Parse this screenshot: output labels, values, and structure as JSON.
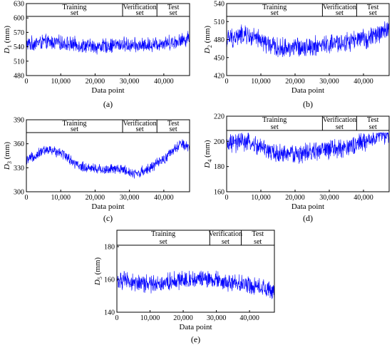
{
  "chart_data": [
    {
      "type": "line",
      "panel_label": "(a)",
      "ylabel_base": "D",
      "ylabel_sub": "1",
      "ylabel_unit": " (mm)",
      "xlabel": "Data point",
      "x_range": [
        0,
        47500
      ],
      "ylim": [
        480,
        630
      ],
      "yticks": [
        "480",
        "510",
        "540",
        "570",
        "600",
        "630"
      ],
      "xticks": [
        "0",
        "10,000",
        "20,000",
        "30,000",
        "40,000"
      ],
      "color": "#0000ff",
      "segments": [
        {
          "line1": "Training",
          "line2": "set",
          "x_start": 0,
          "x_end": 28000
        },
        {
          "line1": "Verification",
          "line2": "set",
          "x_start": 28000,
          "x_end": 38000
        },
        {
          "line1": "Test",
          "line2": "set",
          "x_start": 38000,
          "x_end": 47500
        }
      ],
      "trend": [
        [
          0,
          545
        ],
        [
          5000,
          550
        ],
        [
          10000,
          548
        ],
        [
          20000,
          540
        ],
        [
          28000,
          545
        ],
        [
          33000,
          542
        ],
        [
          40000,
          548
        ],
        [
          45000,
          552
        ],
        [
          47500,
          560
        ]
      ],
      "noise": 14
    },
    {
      "type": "line",
      "panel_label": "(b)",
      "ylabel_base": "D",
      "ylabel_sub": "2",
      "ylabel_unit": " (mm)",
      "xlabel": "Data point",
      "x_range": [
        0,
        47500
      ],
      "ylim": [
        420,
        540
      ],
      "yticks": [
        "420",
        "450",
        "480",
        "510",
        "540"
      ],
      "xticks": [
        "0",
        "10,000",
        "20,000",
        "30,000",
        "40,000"
      ],
      "color": "#0000ff",
      "segments": [
        {
          "line1": "Training",
          "line2": "set",
          "x_start": 0,
          "x_end": 28000
        },
        {
          "line1": "Verification",
          "line2": "set",
          "x_start": 28000,
          "x_end": 38000
        },
        {
          "line1": "Test",
          "line2": "set",
          "x_start": 38000,
          "x_end": 47500
        }
      ],
      "trend": [
        [
          0,
          480
        ],
        [
          5000,
          488
        ],
        [
          10000,
          478
        ],
        [
          15000,
          465
        ],
        [
          22000,
          468
        ],
        [
          28000,
          470
        ],
        [
          33000,
          474
        ],
        [
          40000,
          480
        ],
        [
          45000,
          490
        ],
        [
          47500,
          500
        ]
      ],
      "noise": 15
    },
    {
      "type": "line",
      "panel_label": "(c)",
      "ylabel_base": "D",
      "ylabel_sub": "3",
      "ylabel_unit": " (mm)",
      "xlabel": "Data point",
      "x_range": [
        0,
        47500
      ],
      "ylim": [
        300,
        390
      ],
      "yticks": [
        "300",
        "330",
        "360",
        "390"
      ],
      "xticks": [
        "0",
        "10,000",
        "20,000",
        "30,000",
        "40,000"
      ],
      "color": "#0000ff",
      "segments": [
        {
          "line1": "Training",
          "line2": "set",
          "x_start": 0,
          "x_end": 28000
        },
        {
          "line1": "Verification",
          "line2": "set",
          "x_start": 28000,
          "x_end": 38000
        },
        {
          "line1": "Test",
          "line2": "set",
          "x_start": 38000,
          "x_end": 47500
        }
      ],
      "trend": [
        [
          0,
          338
        ],
        [
          5000,
          352
        ],
        [
          10000,
          350
        ],
        [
          15000,
          332
        ],
        [
          22000,
          328
        ],
        [
          28000,
          328
        ],
        [
          32000,
          322
        ],
        [
          36000,
          330
        ],
        [
          40000,
          340
        ],
        [
          45000,
          360
        ],
        [
          47500,
          355
        ]
      ],
      "noise": 6
    },
    {
      "type": "line",
      "panel_label": "(d)",
      "ylabel_base": "D",
      "ylabel_sub": "4",
      "ylabel_unit": " (mm)",
      "xlabel": "Data point",
      "x_range": [
        0,
        47500
      ],
      "ylim": [
        160,
        220
      ],
      "yticks": [
        "160",
        "180",
        "200",
        "220"
      ],
      "xticks": [
        "0",
        "10,000",
        "20,000",
        "30,000",
        "40,000"
      ],
      "color": "#0000ff",
      "segments": [
        {
          "line1": "Training",
          "line2": "set",
          "x_start": 0,
          "x_end": 28000
        },
        {
          "line1": "Verification",
          "line2": "set",
          "x_start": 28000,
          "x_end": 38000
        },
        {
          "line1": "Test",
          "line2": "set",
          "x_start": 38000,
          "x_end": 47500
        }
      ],
      "trend": [
        [
          0,
          197
        ],
        [
          5000,
          200
        ],
        [
          10000,
          195
        ],
        [
          15000,
          190
        ],
        [
          22000,
          190
        ],
        [
          28000,
          193
        ],
        [
          33000,
          194
        ],
        [
          40000,
          199
        ],
        [
          45000,
          205
        ],
        [
          47500,
          207
        ]
      ],
      "noise": 7
    },
    {
      "type": "line",
      "panel_label": "(e)",
      "ylabel_base": "D",
      "ylabel_sub": "5",
      "ylabel_unit": " (mm)",
      "xlabel": "Data point",
      "x_range": [
        0,
        47500
      ],
      "ylim": [
        140,
        190
      ],
      "yticks": [
        "140",
        "160",
        "180"
      ],
      "xticks": [
        "0",
        "10,000",
        "20,000",
        "30,000",
        "40,000"
      ],
      "color": "#0000ff",
      "segments": [
        {
          "line1": "Training",
          "line2": "set",
          "x_start": 0,
          "x_end": 28000
        },
        {
          "line1": "Verification",
          "line2": "set",
          "x_start": 28000,
          "x_end": 37500
        },
        {
          "line1": "Test",
          "line2": "set",
          "x_start": 37500,
          "x_end": 47500
        }
      ],
      "trend": [
        [
          0,
          160
        ],
        [
          5000,
          158
        ],
        [
          10000,
          157
        ],
        [
          20000,
          160
        ],
        [
          28000,
          160
        ],
        [
          33000,
          158
        ],
        [
          40000,
          157
        ],
        [
          45000,
          154
        ],
        [
          47500,
          152
        ]
      ],
      "noise": 5
    }
  ]
}
